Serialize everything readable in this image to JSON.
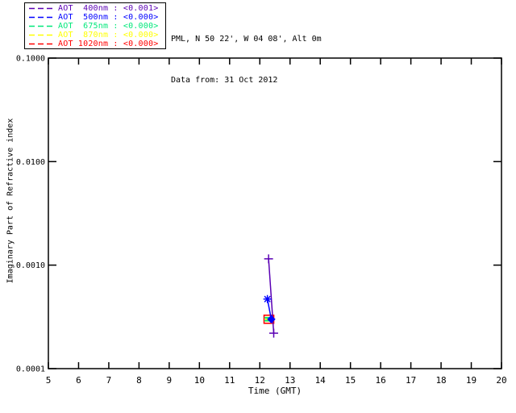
{
  "header": {
    "line1": "PML, N 50 22', W 04 08', Alt 0m",
    "line2": "Data from: 31 Oct 2012"
  },
  "legend": {
    "items": [
      {
        "prefix": "AOT",
        "wavelength": "400nm",
        "value": "<0.001>",
        "color": "#5A00B4"
      },
      {
        "prefix": "AOT",
        "wavelength": "500nm",
        "value": "<0.000>",
        "color": "#0000FF"
      },
      {
        "prefix": "AOT",
        "wavelength": "675nm",
        "value": "<0.000>",
        "color": "#00E87A"
      },
      {
        "prefix": "AOT",
        "wavelength": "870nm",
        "value": "<0.000>",
        "color": "#FFFF00"
      },
      {
        "prefix": "AOT",
        "wavelength": "1020nm",
        "value": "<0.000>",
        "color": "#FF0000"
      }
    ]
  },
  "chart_data": {
    "type": "line",
    "title": "",
    "xlabel": "Time (GMT)",
    "ylabel": "Imaginary Part of Refractive index",
    "xlim": [
      5,
      20
    ],
    "x_ticks": [
      5,
      6,
      7,
      8,
      9,
      10,
      11,
      12,
      13,
      14,
      15,
      16,
      17,
      18,
      19,
      20
    ],
    "yscale": "log",
    "ylim": [
      0.0001,
      0.1
    ],
    "y_ticks": [
      {
        "value": 0.1,
        "label": "0.1000"
      },
      {
        "value": 0.01,
        "label": "0.0100"
      },
      {
        "value": 0.001,
        "label": "0.0010"
      },
      {
        "value": 0.0001,
        "label": "0.0001"
      }
    ],
    "grid": false,
    "legend_position": "top-left",
    "frame_color": "#000000",
    "series": [
      {
        "name": "AOT 870nm",
        "color": "#FFFF00",
        "line": false,
        "points": [
          {
            "x": 12.3,
            "y": 0.0003,
            "marker": "filled-rect"
          }
        ]
      },
      {
        "name": "AOT 1020nm",
        "color": "#FF0000",
        "line": false,
        "points": [
          {
            "x": 12.3,
            "y": 0.0003,
            "marker": "open-rect"
          }
        ]
      },
      {
        "name": "AOT 675nm",
        "color": "#00E87A",
        "line": false,
        "points": [
          {
            "x": 12.23,
            "y": 0.0003,
            "marker": "dash"
          }
        ]
      },
      {
        "name": "AOT 400nm",
        "color": "#5A00B4",
        "line": true,
        "points": [
          {
            "x": 12.29,
            "y": 0.00115,
            "marker": "plus"
          },
          {
            "x": 12.46,
            "y": 0.00022,
            "marker": "plus"
          }
        ]
      },
      {
        "name": "AOT 500nm",
        "color": "#0000FF",
        "line": true,
        "points": [
          {
            "x": 12.25,
            "y": 0.00047,
            "marker": "asterisk"
          },
          {
            "x": 12.38,
            "y": 0.0003,
            "marker": "diamond"
          }
        ]
      }
    ]
  }
}
